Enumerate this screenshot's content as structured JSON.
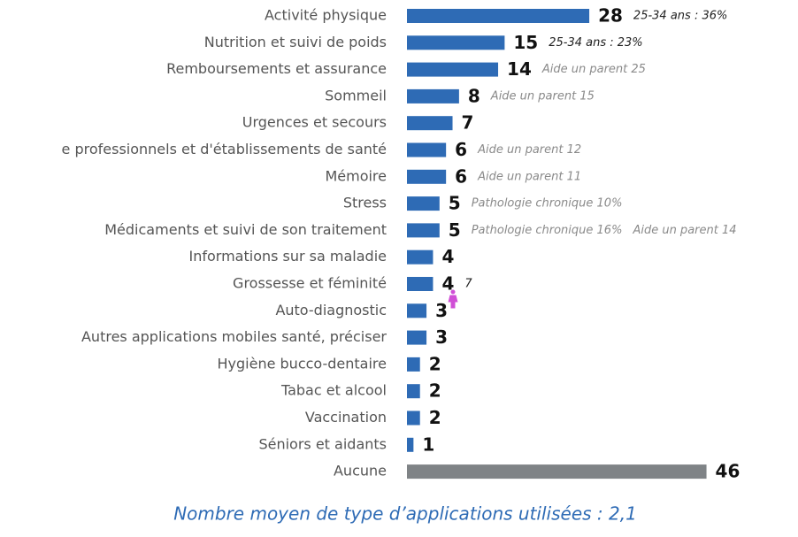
{
  "chart_data": {
    "type": "bar",
    "orientation": "horizontal",
    "categories": [
      "Activité physique",
      "Nutrition et suivi de poids",
      "Remboursements et assurance",
      "Sommeil",
      "Urgences et secours",
      "e professionnels et d'établissements de santé",
      "Mémoire",
      "Stress",
      "Médicaments et suivi de son traitement",
      "Informations sur sa maladie",
      "Grossesse et féminité",
      "Auto-diagnostic",
      "Autres applications mobiles santé, préciser",
      "Hygiène bucco-dentaire",
      "Tabac et alcool",
      "Vaccination",
      "Séniors et aidants",
      "Aucune"
    ],
    "values": [
      28,
      15,
      14,
      8,
      7,
      6,
      6,
      5,
      5,
      4,
      4,
      3,
      3,
      2,
      2,
      2,
      1,
      46
    ],
    "colors": [
      "#2e6bb5",
      "#2e6bb5",
      "#2e6bb5",
      "#2e6bb5",
      "#2e6bb5",
      "#2e6bb5",
      "#2e6bb5",
      "#2e6bb5",
      "#2e6bb5",
      "#2e6bb5",
      "#2e6bb5",
      "#2e6bb5",
      "#2e6bb5",
      "#2e6bb5",
      "#2e6bb5",
      "#2e6bb5",
      "#2e6bb5",
      "#7f8386"
    ],
    "notes": [
      [
        {
          "text": "25-34 ans : 36%",
          "color": "#222222"
        }
      ],
      [
        {
          "text": "25-34 ans : 23%",
          "color": "#222222"
        }
      ],
      [
        {
          "text": "Aide un parent 25",
          "color": "#8a8a8a"
        }
      ],
      [
        {
          "text": "Aide un parent 15",
          "color": "#8a8a8a"
        }
      ],
      [],
      [
        {
          "text": "Aide un parent 12",
          "color": "#8a8a8a"
        }
      ],
      [
        {
          "text": "Aide un parent 11",
          "color": "#8a8a8a"
        }
      ],
      [
        {
          "text": "Pathologie chronique 10%",
          "color": "#8a8a8a"
        }
      ],
      [
        {
          "text": "Pathologie chronique 16%",
          "color": "#8a8a8a"
        },
        {
          "text": "Aide un parent 14",
          "color": "#8a8a8a"
        }
      ],
      [],
      [
        {
          "text": "7",
          "color": "#222222"
        }
      ],
      [],
      [],
      [],
      [],
      [],
      [],
      []
    ],
    "footer": "Nombre moyen de type d’applications utilisées : 2,1"
  }
}
